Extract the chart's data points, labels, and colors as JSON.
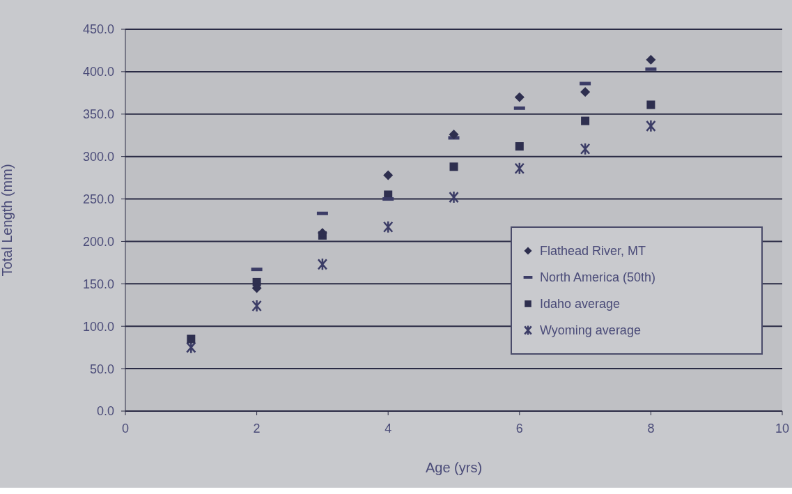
{
  "chart_data": {
    "type": "scatter",
    "xlabel": "Age (yrs)",
    "ylabel": "Total Length (mm)",
    "x": [
      1,
      2,
      3,
      4,
      5,
      6,
      7,
      8
    ],
    "series": [
      {
        "name": "Flathead River, MT",
        "color": "#2e2f4f",
        "marker": "diamond",
        "values": [
          null,
          145,
          210,
          278,
          326,
          370,
          376,
          414
        ]
      },
      {
        "name": "North America (50th)",
        "color": "#3b3c66",
        "values": [
          null,
          167,
          233,
          250,
          322,
          357,
          386,
          403
        ]
      },
      {
        "name": "Idaho average",
        "color": "#2e2f4f",
        "marker": "square",
        "values": [
          85,
          152,
          207,
          255,
          288,
          312,
          342,
          361
        ]
      },
      {
        "name": "Wyoming average",
        "color": "#3b3c66",
        "marker": "cross",
        "values": [
          75,
          124,
          173,
          217,
          252,
          286,
          309,
          336
        ]
      }
    ],
    "xlim": [
      0,
      10
    ],
    "xticks": [
      0,
      2,
      4,
      6,
      8,
      10
    ],
    "ylim": [
      0,
      450
    ],
    "yticks": [
      {
        "value": 0,
        "label": "0.0"
      },
      {
        "value": 50,
        "label": "50.0"
      },
      {
        "value": 100,
        "label": "100.0"
      },
      {
        "value": 150,
        "label": "150.0"
      },
      {
        "value": 200,
        "label": "200.0"
      },
      {
        "value": 250,
        "label": "250.0"
      },
      {
        "value": 300,
        "label": "300.0"
      },
      {
        "value": 350,
        "label": "350.0"
      },
      {
        "value": 400,
        "label": "400.0"
      },
      {
        "value": 450,
        "label": "450.0"
      }
    ],
    "grid": "y",
    "legend": "bottom right"
  }
}
